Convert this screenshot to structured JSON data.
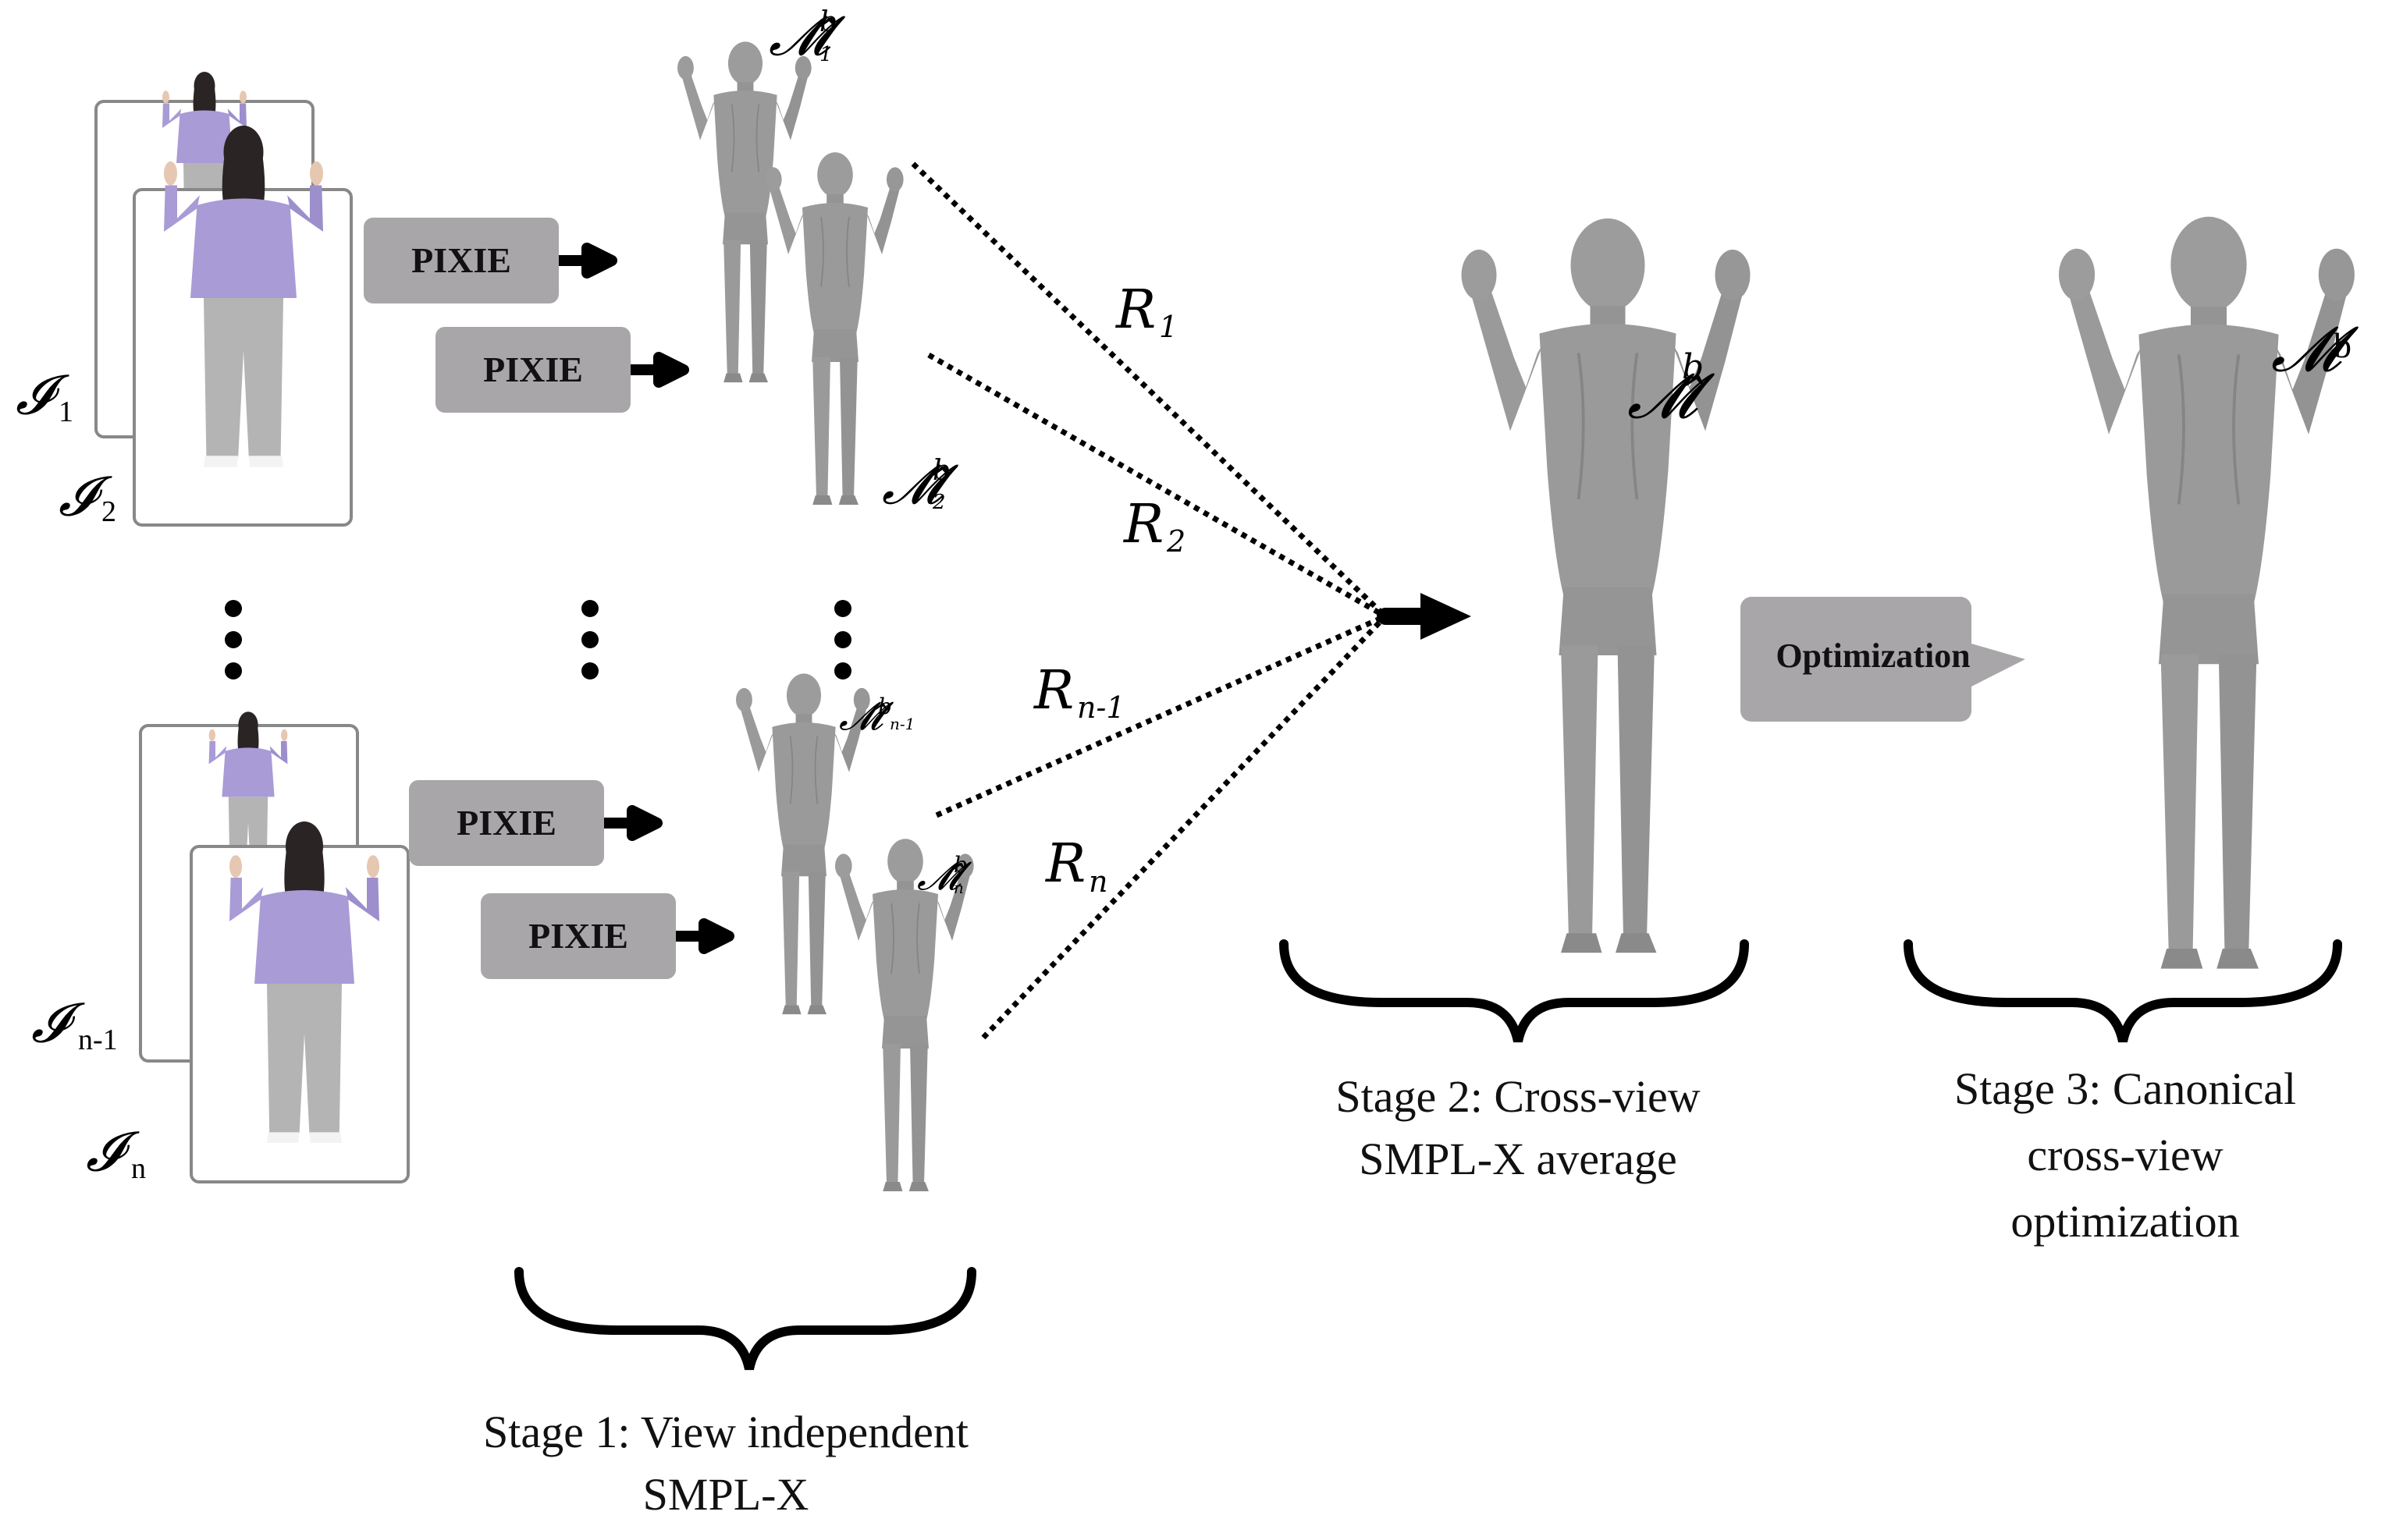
{
  "inputs": {
    "labels": [
      {
        "sym": "𝓘",
        "sub": "1"
      },
      {
        "sym": "𝓘",
        "sub": "2"
      },
      {
        "sym": "𝓘",
        "sub": "n-1"
      },
      {
        "sym": "𝓘",
        "sub": "n"
      }
    ]
  },
  "pixie_label": "PIXIE",
  "meshes": {
    "m1": {
      "sym": "𝓜̂",
      "sup": "b",
      "sub": "1"
    },
    "m2": {
      "sym": "𝓜̂",
      "sup": "b",
      "sub": "2"
    },
    "mn1": {
      "sym": "𝓜̂",
      "sup": "b",
      "sub": "n-1"
    },
    "mn": {
      "sym": "𝓜̂",
      "sup": "b",
      "sub": "n"
    },
    "avg": {
      "sym": "𝓜̂",
      "sup": "b"
    },
    "final": {
      "sym": "𝓜",
      "sup": "b"
    }
  },
  "rotations": [
    {
      "sym": "R",
      "sub": "1"
    },
    {
      "sym": "R",
      "sub": "2"
    },
    {
      "sym": "R",
      "sub": "n-1"
    },
    {
      "sym": "R",
      "sub": "n"
    }
  ],
  "optimization_label": "Optimization",
  "stages": {
    "stage1": [
      "Stage 1: View independent",
      "SMPL-X"
    ],
    "stage2": [
      "Stage 2: Cross-view",
      "SMPL-X average"
    ],
    "stage3": [
      "Stage 3: Canonical",
      "cross-view",
      "optimization"
    ]
  },
  "colors": {
    "box_gray": "#a9a6a9",
    "mesh_gray": "#9c9c9c",
    "mesh_dark": "#7d7d7d",
    "hoodie_purple": "#a99bd6",
    "pants_gray": "#b4b4b4",
    "hair": "#2a2524",
    "frame": "#888888"
  }
}
